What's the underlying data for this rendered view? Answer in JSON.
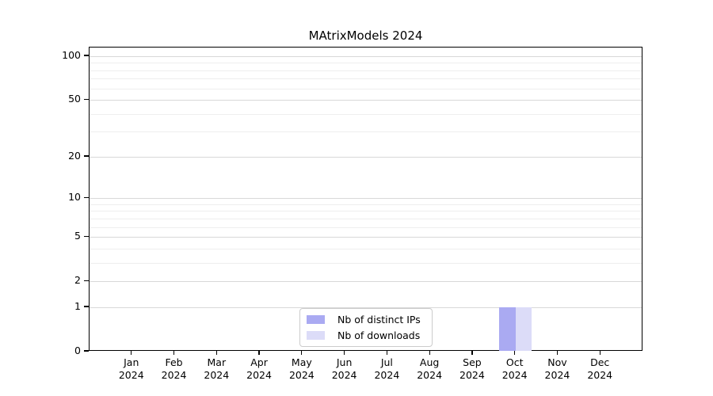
{
  "chart_data": {
    "type": "bar",
    "title": "MAtrixModels 2024",
    "categories": [
      "Jan",
      "Feb",
      "Mar",
      "Apr",
      "May",
      "Jun",
      "Jul",
      "Aug",
      "Sep",
      "Oct",
      "Nov",
      "Dec"
    ],
    "category_year": "2024",
    "x_labels": [
      [
        "Jan",
        "2024"
      ],
      [
        "Feb",
        "2024"
      ],
      [
        "Mar",
        "2024"
      ],
      [
        "Apr",
        "2024"
      ],
      [
        "May",
        "2024"
      ],
      [
        "Jun",
        "2024"
      ],
      [
        "Jul",
        "2024"
      ],
      [
        "Aug",
        "2024"
      ],
      [
        "Sep",
        "2024"
      ],
      [
        "Oct",
        "2024"
      ],
      [
        "Nov",
        "2024"
      ],
      [
        "Dec",
        "2024"
      ]
    ],
    "series": [
      {
        "name": "Nb of distinct IPs",
        "color": "#aaaaf2",
        "values": [
          0,
          0,
          0,
          0,
          0,
          0,
          0,
          0,
          0,
          1,
          0,
          0
        ]
      },
      {
        "name": "Nb of downloads",
        "color": "#dcdcf8",
        "values": [
          0,
          0,
          0,
          0,
          0,
          0,
          0,
          0,
          0,
          1,
          0,
          0
        ]
      }
    ],
    "y_axis": {
      "scale": "log1p",
      "major_ticks": [
        0,
        1,
        2,
        5,
        10,
        20,
        50,
        100
      ],
      "minor_ticks": [
        3,
        4,
        6,
        7,
        8,
        9,
        30,
        40,
        60,
        70,
        80,
        90
      ],
      "ylim": [
        0,
        115
      ]
    },
    "xlabel": "",
    "ylabel": "",
    "grid": {
      "major_color": "#d8d8d8",
      "minor_color": "#eeeeee"
    },
    "legend": {
      "position": "bottom-center-inside"
    }
  }
}
